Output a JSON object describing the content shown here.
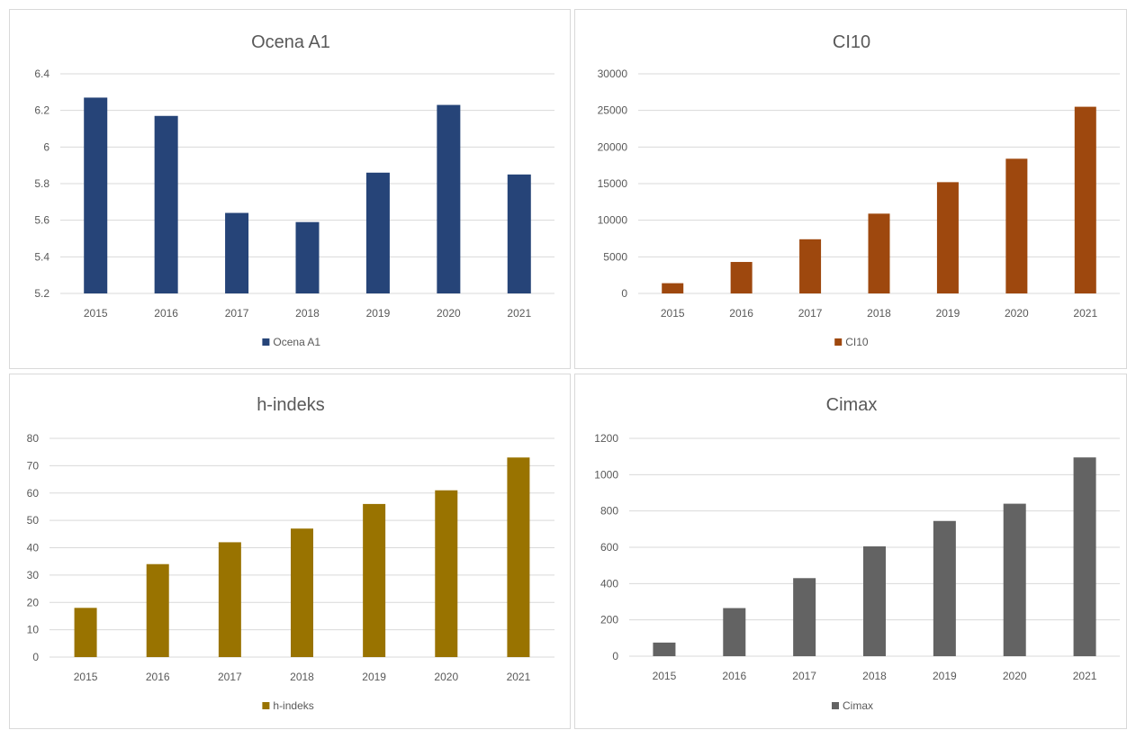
{
  "chart_data": [
    {
      "type": "bar",
      "title": "Ocena A1",
      "categories": [
        "2015",
        "2016",
        "2017",
        "2018",
        "2019",
        "2020",
        "2021"
      ],
      "series": [
        {
          "name": "Ocena A1",
          "values": [
            6.27,
            6.17,
            5.64,
            5.59,
            5.86,
            6.23,
            5.85
          ]
        }
      ],
      "ylim": [
        5.2,
        6.4
      ],
      "yticks": [
        "5.2",
        "5.4",
        "5.6",
        "5.8",
        "6",
        "6.2",
        "6.4"
      ],
      "grid": true,
      "legend": "bottom",
      "color": "#264478"
    },
    {
      "type": "bar",
      "title": "CI10",
      "categories": [
        "2015",
        "2016",
        "2017",
        "2018",
        "2019",
        "2020",
        "2021"
      ],
      "series": [
        {
          "name": "CI10",
          "values": [
            1400,
            4300,
            7400,
            10900,
            15200,
            18400,
            25500
          ]
        }
      ],
      "ylim": [
        0,
        30000
      ],
      "yticks": [
        "0",
        "5000",
        "10000",
        "15000",
        "20000",
        "25000",
        "30000"
      ],
      "grid": true,
      "legend": "bottom",
      "color": "#9E480E"
    },
    {
      "type": "bar",
      "title": "h-indeks",
      "categories": [
        "2015",
        "2016",
        "2017",
        "2018",
        "2019",
        "2020",
        "2021"
      ],
      "series": [
        {
          "name": "h-indeks",
          "values": [
            18,
            34,
            42,
            47,
            56,
            61,
            73
          ]
        }
      ],
      "ylim": [
        0,
        80
      ],
      "yticks": [
        "0",
        "10",
        "20",
        "30",
        "40",
        "50",
        "60",
        "70",
        "80"
      ],
      "grid": true,
      "legend": "bottom",
      "color": "#997300"
    },
    {
      "type": "bar",
      "title": "Cimax",
      "categories": [
        "2015",
        "2016",
        "2017",
        "2018",
        "2019",
        "2020",
        "2021"
      ],
      "series": [
        {
          "name": "Cimax",
          "values": [
            75,
            265,
            430,
            605,
            745,
            840,
            1095
          ]
        }
      ],
      "ylim": [
        0,
        1200
      ],
      "yticks": [
        "0",
        "200",
        "400",
        "600",
        "800",
        "1000",
        "1200"
      ],
      "grid": true,
      "legend": "bottom",
      "color": "#636363"
    }
  ]
}
